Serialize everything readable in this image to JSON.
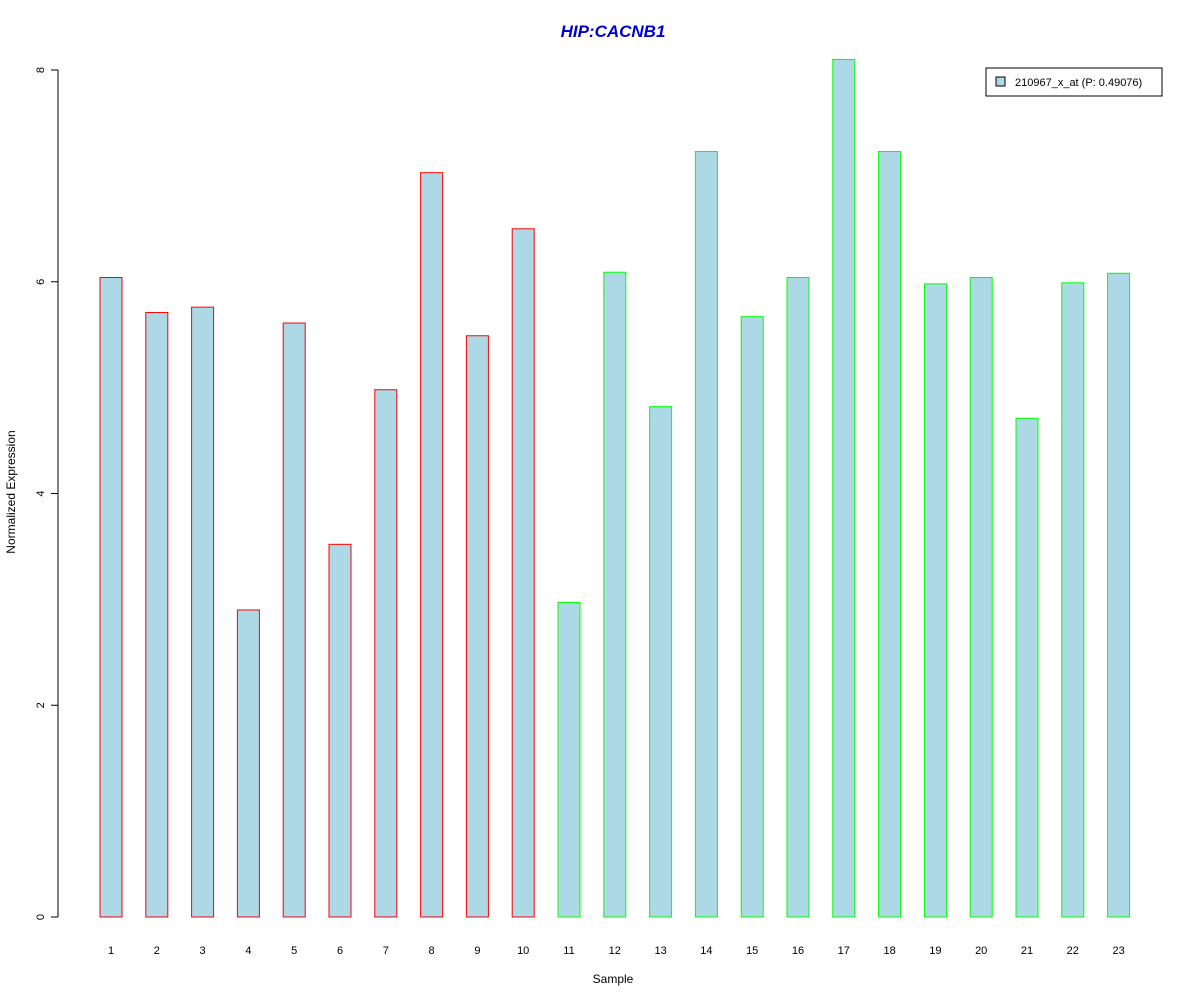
{
  "chart_data": {
    "type": "bar",
    "title": "HIP:CACNB1",
    "xlabel": "Sample",
    "ylabel": "Normalized Expression",
    "categories": [
      "1",
      "2",
      "3",
      "4",
      "5",
      "6",
      "7",
      "8",
      "9",
      "10",
      "11",
      "12",
      "13",
      "14",
      "15",
      "16",
      "17",
      "18",
      "19",
      "20",
      "21",
      "22",
      "23"
    ],
    "series": [
      {
        "name": "210967_x_at (P: 0.49076)",
        "values": [
          6.04,
          5.71,
          5.76,
          2.9,
          5.61,
          3.52,
          4.98,
          7.03,
          5.49,
          6.5,
          2.97,
          6.09,
          4.82,
          7.23,
          5.67,
          6.04,
          8.1,
          7.23,
          5.98,
          6.04,
          4.71,
          5.99,
          6.08
        ],
        "group": [
          "a",
          "a",
          "a",
          "a",
          "a",
          "a",
          "a",
          "a",
          "a",
          "a",
          "b",
          "b",
          "b",
          "b",
          "b",
          "b",
          "b",
          "b",
          "b",
          "b",
          "b",
          "b",
          "b"
        ]
      }
    ],
    "ylim": [
      0,
      8
    ],
    "yticks": [
      "0",
      "2",
      "4",
      "6",
      "8"
    ],
    "legend_position": "top-right",
    "grid": false,
    "colors": {
      "fill": "#ADD8E6",
      "group_a_border": "#FF0000",
      "group_b_border": "#00FF00",
      "title": "#0000CC",
      "axis": "#000000"
    }
  }
}
